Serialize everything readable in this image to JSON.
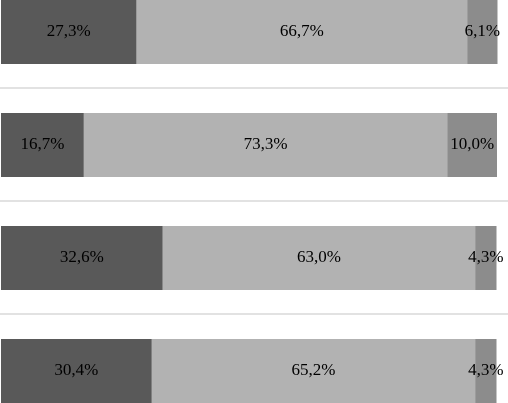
{
  "chart_data": {
    "type": "stacked-bar-horizontal",
    "series": [
      {
        "color": "#595959",
        "values": [
          27.3,
          16.7,
          32.6,
          30.4
        ],
        "value_labels": [
          "27,3%",
          "16,7%",
          "32,6%",
          "30,4%"
        ]
      },
      {
        "color": "#b2b2b2",
        "values": [
          66.7,
          73.3,
          63.0,
          65.2
        ],
        "value_labels": [
          "66,7%",
          "73,3%",
          "63,0%",
          "65,2%"
        ]
      },
      {
        "color": "#8c8c8c",
        "values": [
          6.1,
          10.0,
          4.3,
          4.3
        ],
        "value_labels": [
          "6,1%",
          "10,0%",
          "4,3%",
          "4,3%"
        ]
      }
    ]
  }
}
